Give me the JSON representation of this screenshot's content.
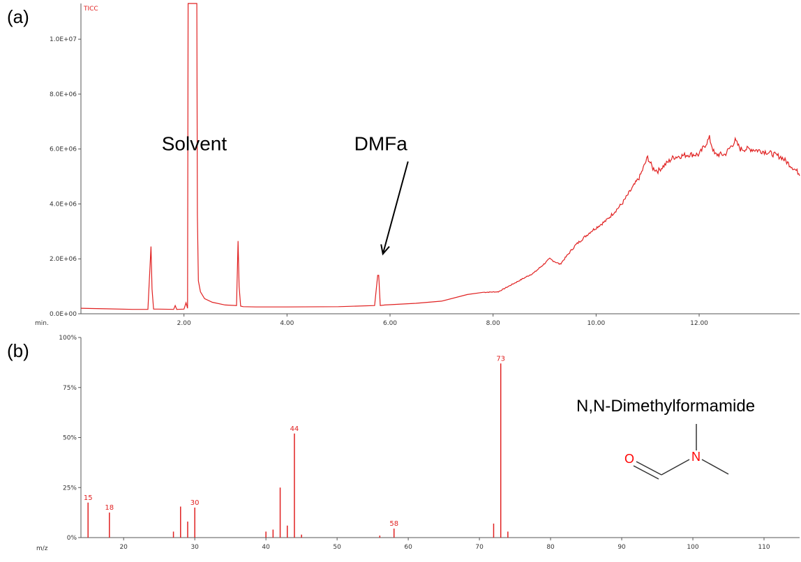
{
  "panels": {
    "a_label": "(a)",
    "b_label": "(b)"
  },
  "chart_data": [
    {
      "type": "line",
      "trace_label": "TICC",
      "xlabel": "min.",
      "ylabel": "",
      "xlim": [
        0.0,
        13.95
      ],
      "ylim": [
        0,
        11300000
      ],
      "xticks": [
        2.0,
        4.0,
        6.0,
        8.0,
        10.0,
        12.0
      ],
      "xtick_labels": [
        "2.00",
        "4.00",
        "6.00",
        "8.00",
        "10.00",
        "12.00"
      ],
      "yticks": [
        0,
        2000000,
        4000000,
        6000000,
        8000000,
        10000000
      ],
      "ytick_labels": [
        "0.0E+00",
        "2.0E+06",
        "4.0E+06",
        "6.0E+06",
        "8.0E+06",
        "1.0E+07"
      ],
      "color": "#e02020",
      "x": [
        0.0,
        0.5,
        1.0,
        1.3,
        1.36,
        1.38,
        1.41,
        1.5,
        1.8,
        1.83,
        1.86,
        2.0,
        2.04,
        2.07,
        2.08,
        2.25,
        2.26,
        2.28,
        2.32,
        2.4,
        2.55,
        2.8,
        3.02,
        3.05,
        3.07,
        3.1,
        3.15,
        3.4,
        4.0,
        5.0,
        5.7,
        5.76,
        5.78,
        5.81,
        5.9,
        6.5,
        7.0,
        7.5,
        7.8,
        8.1,
        8.5,
        8.8,
        9.1,
        9.3,
        9.6,
        9.9,
        10.2,
        10.5,
        10.85,
        11.0,
        11.1,
        11.2,
        11.5,
        11.8,
        12.0,
        12.2,
        12.3,
        12.5,
        12.7,
        12.8,
        13.0,
        13.3,
        13.6,
        13.95
      ],
      "y": [
        200000,
        180000,
        160000,
        160000,
        2450000,
        900000,
        170000,
        170000,
        160000,
        300000,
        160000,
        170000,
        400000,
        200000,
        11300000,
        11300000,
        3600000,
        1200000,
        800000,
        550000,
        420000,
        320000,
        300000,
        2650000,
        1000000,
        280000,
        260000,
        250000,
        250000,
        260000,
        300000,
        1400000,
        1400000,
        300000,
        320000,
        380000,
        460000,
        700000,
        780000,
        800000,
        1200000,
        1500000,
        2000000,
        1800000,
        2500000,
        3000000,
        3400000,
        4000000,
        5000000,
        5700000,
        5300000,
        5200000,
        5700000,
        5800000,
        5800000,
        6400000,
        5800000,
        5800000,
        6300000,
        6000000,
        6000000,
        5900000,
        5700000,
        5100000
      ],
      "annotations": [
        {
          "text": "Solvent",
          "x": 2.2,
          "y": 5950000
        },
        {
          "text": "DMFa",
          "x": 5.82,
          "y": 5950000,
          "arrow_from": [
            5.78,
            5800000
          ],
          "arrow_to": [
            5.22,
            2180000
          ]
        }
      ]
    },
    {
      "type": "bar",
      "xlabel": "m/z",
      "ylabel": "",
      "xlim": [
        14.0,
        115.0
      ],
      "ylim": [
        0,
        100
      ],
      "xticks": [
        20,
        30,
        40,
        50,
        60,
        70,
        80,
        90,
        100,
        110
      ],
      "xtick_labels": [
        "20",
        "30",
        "40",
        "50",
        "60",
        "70",
        "80",
        "90",
        "100",
        "110"
      ],
      "yticks": [
        0,
        25,
        50,
        75,
        100
      ],
      "ytick_labels": [
        "0%",
        "25%",
        "50%",
        "75%",
        "100%"
      ],
      "color": "#e02020",
      "peaks": [
        {
          "mz": 15,
          "rel": 17.5,
          "label": "15"
        },
        {
          "mz": 18,
          "rel": 12.5,
          "label": "18"
        },
        {
          "mz": 27,
          "rel": 3,
          "label": ""
        },
        {
          "mz": 28,
          "rel": 15.5,
          "label": ""
        },
        {
          "mz": 29,
          "rel": 8,
          "label": ""
        },
        {
          "mz": 30,
          "rel": 15,
          "label": "30"
        },
        {
          "mz": 40,
          "rel": 3,
          "label": ""
        },
        {
          "mz": 41,
          "rel": 4,
          "label": ""
        },
        {
          "mz": 42,
          "rel": 25,
          "label": ""
        },
        {
          "mz": 43,
          "rel": 6,
          "label": ""
        },
        {
          "mz": 44,
          "rel": 52,
          "label": "44"
        },
        {
          "mz": 45,
          "rel": 1.5,
          "label": ""
        },
        {
          "mz": 56,
          "rel": 1,
          "label": ""
        },
        {
          "mz": 58,
          "rel": 4.5,
          "label": "58"
        },
        {
          "mz": 72,
          "rel": 7,
          "label": ""
        },
        {
          "mz": 73,
          "rel": 87,
          "label": "73"
        },
        {
          "mz": 74,
          "rel": 3,
          "label": ""
        }
      ]
    }
  ],
  "compound": {
    "name": "N,N-Dimethylformamide",
    "atom_o": "O",
    "atom_n": "N"
  }
}
